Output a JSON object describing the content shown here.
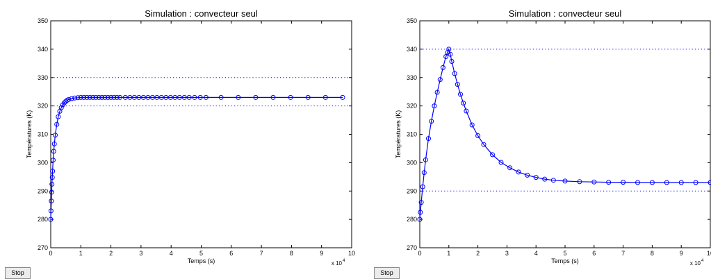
{
  "controls": {
    "stop_label": "Stop"
  },
  "chart_data": [
    {
      "type": "line",
      "title": "Simulation : convecteur seul",
      "xlabel": "Temps (s)",
      "ylabel": "Températures (K)",
      "x_multiplier": "x 10",
      "x_multiplier_exponent": "4",
      "xlim": [
        0,
        100000
      ],
      "ylim": [
        270,
        350
      ],
      "xticks": [
        "0",
        "1",
        "2",
        "3",
        "4",
        "5",
        "6",
        "7",
        "8",
        "9",
        "10"
      ],
      "yticks": [
        "270",
        "280",
        "290",
        "300",
        "310",
        "320",
        "330",
        "340",
        "350"
      ],
      "grid": false,
      "reference_lines": [
        320,
        330
      ],
      "reference_style": "dotted",
      "series": [
        {
          "marker": "circle",
          "line": "solid",
          "color": "#0000ff",
          "x": [
            0,
            100,
            200,
            300,
            400,
            500,
            600,
            800,
            1000,
            1200,
            1500,
            2000,
            2500,
            3000,
            3500,
            4000,
            4500,
            5000,
            5500,
            6000,
            7000,
            8000,
            9000,
            10000,
            11000,
            12000,
            13000,
            14000,
            15000,
            16000,
            17000,
            18000,
            19000,
            20000,
            21000,
            22000,
            23000,
            24800,
            26300,
            27800,
            29300,
            30800,
            32300,
            33800,
            35300,
            36800,
            38300,
            39800,
            41300,
            42800,
            44400,
            46000,
            47800,
            49700,
            51600,
            56600,
            62300,
            68100,
            73900,
            79700,
            85500,
            91300,
            97000
          ],
          "y": [
            280,
            283,
            286.5,
            289.6,
            292.4,
            294.8,
            297,
            300.9,
            304,
            306.6,
            309.7,
            313.5,
            316.2,
            318.1,
            319.4,
            320.4,
            321.1,
            321.6,
            322,
            322.3,
            322.6,
            322.8,
            322.9,
            323,
            323,
            323,
            323,
            323,
            323,
            323,
            323,
            323,
            323,
            323,
            323,
            323,
            323,
            323,
            323,
            323,
            323,
            323,
            323,
            323,
            323,
            323,
            323,
            323,
            323,
            323,
            323,
            323,
            323,
            323,
            323,
            323,
            323,
            323,
            323,
            323,
            323,
            323,
            323
          ]
        }
      ]
    },
    {
      "type": "line",
      "title": "Simulation : convecteur seul",
      "xlabel": "Temps (s)",
      "ylabel": "Températures (K)",
      "x_multiplier": "x 10",
      "x_multiplier_exponent": "4",
      "xlim": [
        0,
        100000
      ],
      "ylim": [
        270,
        350
      ],
      "xticks": [
        "0",
        "1",
        "2",
        "3",
        "4",
        "5",
        "6",
        "7",
        "8",
        "9",
        "10"
      ],
      "yticks": [
        "270",
        "280",
        "290",
        "300",
        "310",
        "320",
        "330",
        "340",
        "350"
      ],
      "grid": false,
      "reference_lines": [
        290,
        340
      ],
      "reference_style": "dotted",
      "series": [
        {
          "marker": "circle",
          "line": "solid",
          "color": "#0000ff",
          "x": [
            0,
            200,
            500,
            1000,
            1500,
            2000,
            3000,
            4000,
            5000,
            6000,
            7000,
            8000,
            9000,
            9500,
            10000,
            10500,
            11000,
            12000,
            13000,
            14000,
            15000,
            16000,
            18000,
            20000,
            22000,
            25000,
            28000,
            31000,
            34000,
            37000,
            40000,
            43000,
            46000,
            50000,
            55000,
            60000,
            65000,
            70000,
            75000,
            80000,
            85000,
            90000,
            95000,
            100000
          ],
          "y": [
            280,
            282.5,
            286,
            291.5,
            296.5,
            301,
            308.5,
            314.6,
            320,
            324.8,
            329.3,
            333.5,
            337.4,
            338.8,
            340,
            338.2,
            335.7,
            331.4,
            327.6,
            324.1,
            321,
            318.2,
            313.3,
            309.5,
            306.4,
            302.8,
            300.1,
            298.2,
            296.7,
            295.6,
            294.8,
            294.2,
            293.8,
            293.5,
            293.3,
            293.2,
            293.1,
            293.1,
            293,
            293,
            293,
            293,
            293,
            293
          ]
        }
      ]
    }
  ]
}
